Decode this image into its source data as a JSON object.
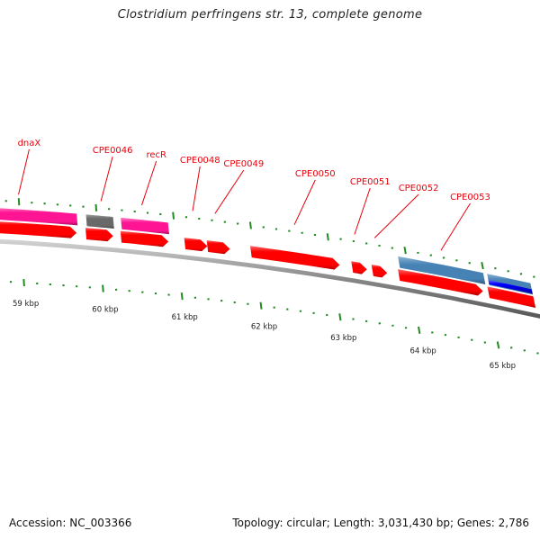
{
  "title": "Clostridium perfringens str. 13, complete genome",
  "footer": {
    "accession": "Accession: NC_003366",
    "summary": "Topology: circular; Length: 3,031,430 bp; Genes: 2,786"
  },
  "colors": {
    "cds": "#ff0000",
    "gene_pink": "#ff1493",
    "gene_gray": "#696969",
    "gene_steelblue": "#4682b4",
    "gene_blue": "#0000ff",
    "label": "#e8000b",
    "tick": "#228b22",
    "backbone": "#888888"
  },
  "scale": {
    "unit": "kbp",
    "labels": [
      "59 kbp",
      "60 kbp",
      "61 kbp",
      "62 kbp",
      "63 kbp",
      "64 kbp",
      "65 kbp"
    ],
    "major_values_kbp": [
      59,
      60,
      61,
      62,
      63,
      64,
      65
    ],
    "minor_per_major": 5
  },
  "features": [
    {
      "name": "dnaX",
      "start_kbp": 58.5,
      "end_kbp": 59.74,
      "track": "upper",
      "color": "gene_pink"
    },
    {
      "name": "dnaX-cds",
      "start_kbp": 58.5,
      "end_kbp": 59.72,
      "track": "lower",
      "color": "cds",
      "arrow": true
    },
    {
      "name": "CPE0046",
      "start_kbp": 59.86,
      "end_kbp": 60.21,
      "track": "upper",
      "color": "gene_gray"
    },
    {
      "name": "CPE0046-cds",
      "start_kbp": 59.84,
      "end_kbp": 60.19,
      "track": "lower",
      "color": "cds",
      "arrow": true
    },
    {
      "name": "recR",
      "start_kbp": 60.31,
      "end_kbp": 60.92,
      "track": "upper",
      "color": "gene_pink"
    },
    {
      "name": "recR-cds",
      "start_kbp": 60.29,
      "end_kbp": 60.9,
      "track": "lower",
      "color": "cds",
      "arrow": true
    },
    {
      "name": "CPE0048",
      "start_kbp": 61.11,
      "end_kbp": 61.4,
      "track": "lower",
      "color": "cds",
      "arrow": true
    },
    {
      "name": "CPE0049",
      "start_kbp": 61.4,
      "end_kbp": 61.69,
      "track": "lower",
      "color": "cds",
      "arrow": true
    },
    {
      "name": "CPE0050",
      "start_kbp": 61.96,
      "end_kbp": 63.1,
      "track": "lower",
      "color": "cds",
      "arrow": true
    },
    {
      "name": "CPE0051",
      "start_kbp": 63.26,
      "end_kbp": 63.45,
      "track": "lower",
      "color": "cds",
      "arrow": true
    },
    {
      "name": "CPE0052",
      "start_kbp": 63.52,
      "end_kbp": 63.71,
      "track": "lower",
      "color": "cds",
      "arrow": true
    },
    {
      "name": "CPE0053",
      "start_kbp": 63.89,
      "end_kbp": 64.99,
      "track": "upper",
      "color": "gene_steelblue"
    },
    {
      "name": "CPE0053-cds",
      "start_kbp": 63.86,
      "end_kbp": 64.94,
      "track": "lower",
      "color": "cds",
      "arrow": true
    },
    {
      "name": "next-gene",
      "start_kbp": 65.04,
      "end_kbp": 65.6,
      "track": "upper",
      "color": "gene_steelblue",
      "inner": "gene_blue"
    },
    {
      "name": "next-cds",
      "start_kbp": 65.01,
      "end_kbp": 65.6,
      "track": "lower",
      "color": "cds"
    }
  ],
  "gene_labels": [
    {
      "text": "dnaX",
      "anchor_kbp": 59.0,
      "label_x_kbp": 59.05,
      "level": 0
    },
    {
      "text": "CPE0046",
      "anchor_kbp": 60.07,
      "label_x_kbp": 60.1,
      "level": 1
    },
    {
      "text": "recR",
      "anchor_kbp": 60.6,
      "label_x_kbp": 60.65,
      "level": 2
    },
    {
      "text": "CPE0048",
      "anchor_kbp": 61.26,
      "label_x_kbp": 61.2,
      "level": 3
    },
    {
      "text": "CPE0049",
      "anchor_kbp": 61.55,
      "label_x_kbp": 61.75,
      "level": 4
    },
    {
      "text": "CPE0050",
      "anchor_kbp": 62.58,
      "label_x_kbp": 62.65,
      "level": 5
    },
    {
      "text": "CPE0051",
      "anchor_kbp": 63.36,
      "label_x_kbp": 63.34,
      "level": 6
    },
    {
      "text": "CPE0052",
      "anchor_kbp": 63.62,
      "label_x_kbp": 63.95,
      "level": 7
    },
    {
      "text": "CPE0053",
      "anchor_kbp": 64.48,
      "label_x_kbp": 64.6,
      "level": 8
    }
  ]
}
